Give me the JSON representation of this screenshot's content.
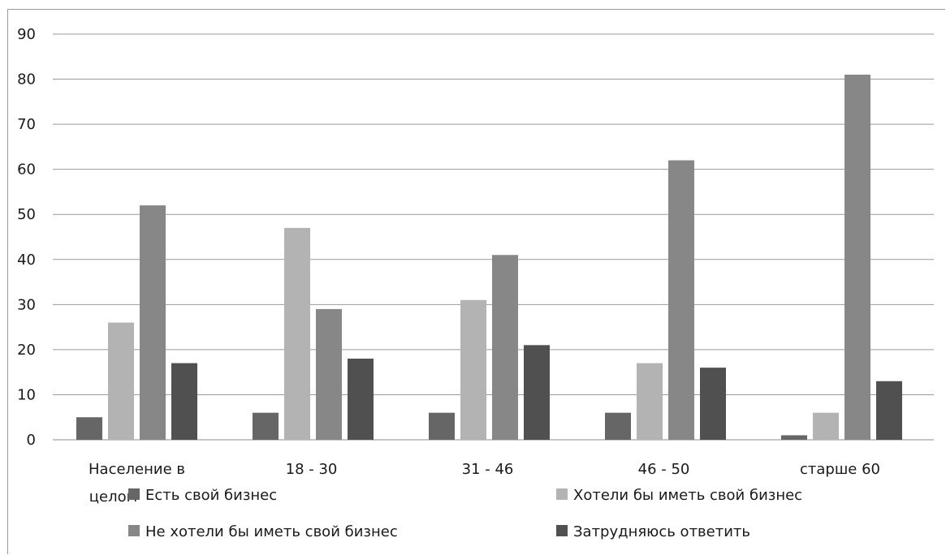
{
  "chart_data": {
    "type": "bar",
    "categories": [
      "Население в целом",
      "18 - 30",
      "31 - 46",
      "46 - 50",
      "старше 60"
    ],
    "series": [
      {
        "name": "Есть свой бизнес",
        "values": [
          5,
          6,
          6,
          6,
          1
        ],
        "color": "#666666"
      },
      {
        "name": "Хотели бы иметь свой бизнес",
        "values": [
          26,
          47,
          31,
          17,
          6
        ],
        "color": "#b3b3b3"
      },
      {
        "name": "Не хотели бы иметь свой бизнес",
        "values": [
          52,
          29,
          41,
          62,
          81
        ],
        "color": "#878787"
      },
      {
        "name": "Затрудняюсь ответить",
        "values": [
          17,
          18,
          21,
          16,
          13
        ],
        "color": "#505050"
      }
    ],
    "ylim": [
      0,
      90
    ],
    "yticks": [
      0,
      10,
      20,
      30,
      40,
      50,
      60,
      70,
      80,
      90
    ],
    "grid": true,
    "legend_position": "bottom",
    "title": "",
    "xlabel": "",
    "ylabel": ""
  }
}
